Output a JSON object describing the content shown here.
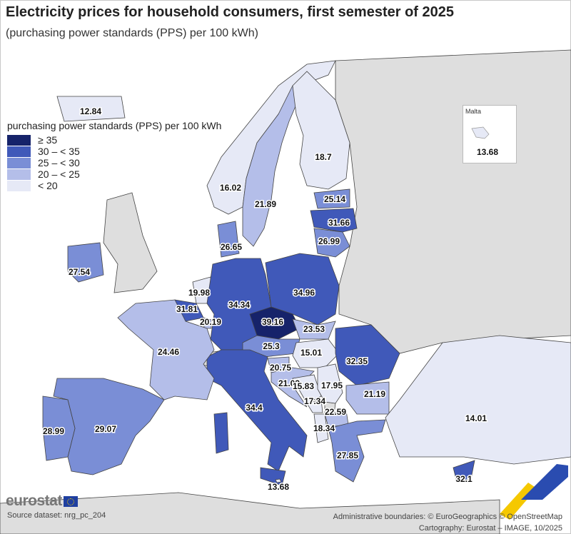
{
  "title": "Electricity prices for household consumers, first semester of 2025",
  "subtitle": "(purchasing power standards (PPS) per 100 kWh)",
  "legend": {
    "title": "purchasing power standards (PPS) per 100 kWh",
    "classes": [
      {
        "label": "≥ 35",
        "color": "#16236a"
      },
      {
        "label": "30 – < 35",
        "color": "#4059b9"
      },
      {
        "label": "25 – < 30",
        "color": "#7a8ed6"
      },
      {
        "label": "20 – < 25",
        "color": "#b4bee9"
      },
      {
        "label": "< 20",
        "color": "#e6e9f6"
      }
    ]
  },
  "colors": {
    "non_eu_land": "#dedede",
    "sea": "#ffffff",
    "borders": "#444444"
  },
  "regions": [
    {
      "id": "IS",
      "value": "12.84"
    },
    {
      "id": "NO",
      "value": "16.02"
    },
    {
      "id": "SE",
      "value": "21.89"
    },
    {
      "id": "FI",
      "value": "18.7"
    },
    {
      "id": "EE",
      "value": "25.14"
    },
    {
      "id": "LV",
      "value": "31.66"
    },
    {
      "id": "LT",
      "value": "26.99"
    },
    {
      "id": "DK",
      "value": "26.65"
    },
    {
      "id": "IE",
      "value": "27.54"
    },
    {
      "id": "NL",
      "value": "19.98"
    },
    {
      "id": "BE",
      "value": "31.81"
    },
    {
      "id": "LU",
      "value": "20.19"
    },
    {
      "id": "DE",
      "value": "34.34"
    },
    {
      "id": "PL",
      "value": "34.96"
    },
    {
      "id": "CZ",
      "value": "39.16"
    },
    {
      "id": "SK",
      "value": "23.53"
    },
    {
      "id": "AT",
      "value": "25.3"
    },
    {
      "id": "HU",
      "value": "15.01"
    },
    {
      "id": "RO",
      "value": "32.35"
    },
    {
      "id": "SI",
      "value": "20.75"
    },
    {
      "id": "HR",
      "value": "21.03"
    },
    {
      "id": "BA",
      "value": "15.83"
    },
    {
      "id": "RS",
      "value": "17.95"
    },
    {
      "id": "ME",
      "value": "17.34"
    },
    {
      "id": "MK",
      "value": "22.59"
    },
    {
      "id": "BG",
      "value": "21.19"
    },
    {
      "id": "AL",
      "value": "18.34"
    },
    {
      "id": "EL",
      "value": "27.85"
    },
    {
      "id": "TR",
      "value": "14.01"
    },
    {
      "id": "CY",
      "value": "32.1"
    },
    {
      "id": "IT",
      "value": "34.4"
    },
    {
      "id": "MT",
      "value": "13.68"
    },
    {
      "id": "FR",
      "value": "24.46"
    },
    {
      "id": "ES",
      "value": "29.07"
    },
    {
      "id": "PT",
      "value": "28.99"
    }
  ],
  "inset": {
    "name": "Malta",
    "value": "13.68"
  },
  "logo": "eurostat",
  "footer": {
    "source": "Source dataset: nrg_pc_204",
    "boundaries": "Administrative boundaries: © EuroGeographics © OpenStreetMap",
    "cartography": "Cartography: Eurostat – IMAGE, 10/2025"
  }
}
